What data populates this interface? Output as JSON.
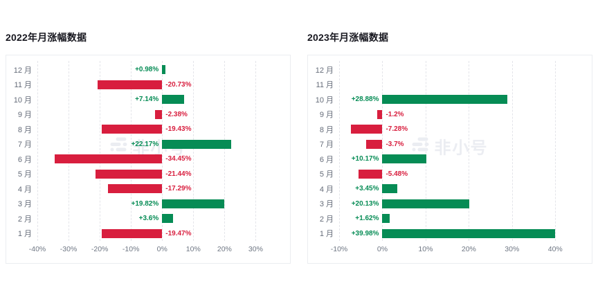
{
  "page": {
    "background": "#ffffff"
  },
  "watermark": {
    "text": "非小号",
    "icon": "feixiaohao-logo-icon",
    "color": "#ebedf2"
  },
  "colors": {
    "positive": "#068c55",
    "negative": "#d81e3e",
    "title": "#17171f",
    "category_label": "#646b78",
    "axis_label": "#6e7683",
    "gridline": "#e3e4e9",
    "card_border": "#ebedf0"
  },
  "chart_data": [
    {
      "type": "bar",
      "orientation": "horizontal",
      "title": "2022年月涨幅数据",
      "categories": [
        "12 月",
        "11 月",
        "10 月",
        "9 月",
        "8 月",
        "7 月",
        "6 月",
        "5 月",
        "4 月",
        "3 月",
        "2 月",
        "1 月"
      ],
      "values": [
        0.98,
        -20.73,
        7.14,
        -2.38,
        -19.43,
        22.17,
        -34.45,
        -21.44,
        -17.29,
        19.82,
        3.6,
        -19.47
      ],
      "labels": [
        "+0.98%",
        "-20.73%",
        "+7.14%",
        "-2.38%",
        "-19.43%",
        "+22.17%",
        "-34.45%",
        "-21.44%",
        "-17.29%",
        "+19.82%",
        "+3.6%",
        "-19.47%"
      ],
      "x_ticks": [
        {
          "value": -40,
          "label": "-40%"
        },
        {
          "value": -30,
          "label": "-30%"
        },
        {
          "value": -20,
          "label": "-20%"
        },
        {
          "value": -10,
          "label": "-10%"
        },
        {
          "value": 0,
          "label": "0%"
        },
        {
          "value": 10,
          "label": "10%"
        },
        {
          "value": 20,
          "label": "20%"
        },
        {
          "value": 30,
          "label": "30%"
        }
      ],
      "xlim": [
        -40,
        39
      ],
      "grid": "dashed-vertical",
      "legend": false,
      "unit": "%"
    },
    {
      "type": "bar",
      "orientation": "horizontal",
      "title": "2023年月涨幅数据",
      "categories": [
        "12 月",
        "11 月",
        "10 月",
        "9 月",
        "8 月",
        "7 月",
        "6 月",
        "5 月",
        "4 月",
        "3 月",
        "2 月",
        "1 月"
      ],
      "values": [
        null,
        null,
        28.88,
        -1.2,
        -7.28,
        -3.7,
        10.17,
        -5.48,
        3.45,
        20.13,
        1.62,
        39.98
      ],
      "labels": [
        "",
        "",
        "+28.88%",
        "-1.2%",
        "-7.28%",
        "-3.7%",
        "+10.17%",
        "-5.48%",
        "+3.45%",
        "+20.13%",
        "+1.62%",
        "+39.98%"
      ],
      "x_ticks": [
        {
          "value": -10,
          "label": "-10%"
        },
        {
          "value": 0,
          "label": "0%"
        },
        {
          "value": 10,
          "label": "10%"
        },
        {
          "value": 20,
          "label": "20%"
        },
        {
          "value": 30,
          "label": "30%"
        },
        {
          "value": 40,
          "label": "40%"
        }
      ],
      "xlim": [
        -10,
        47
      ],
      "grid": "dashed-vertical",
      "legend": false,
      "unit": "%"
    }
  ]
}
